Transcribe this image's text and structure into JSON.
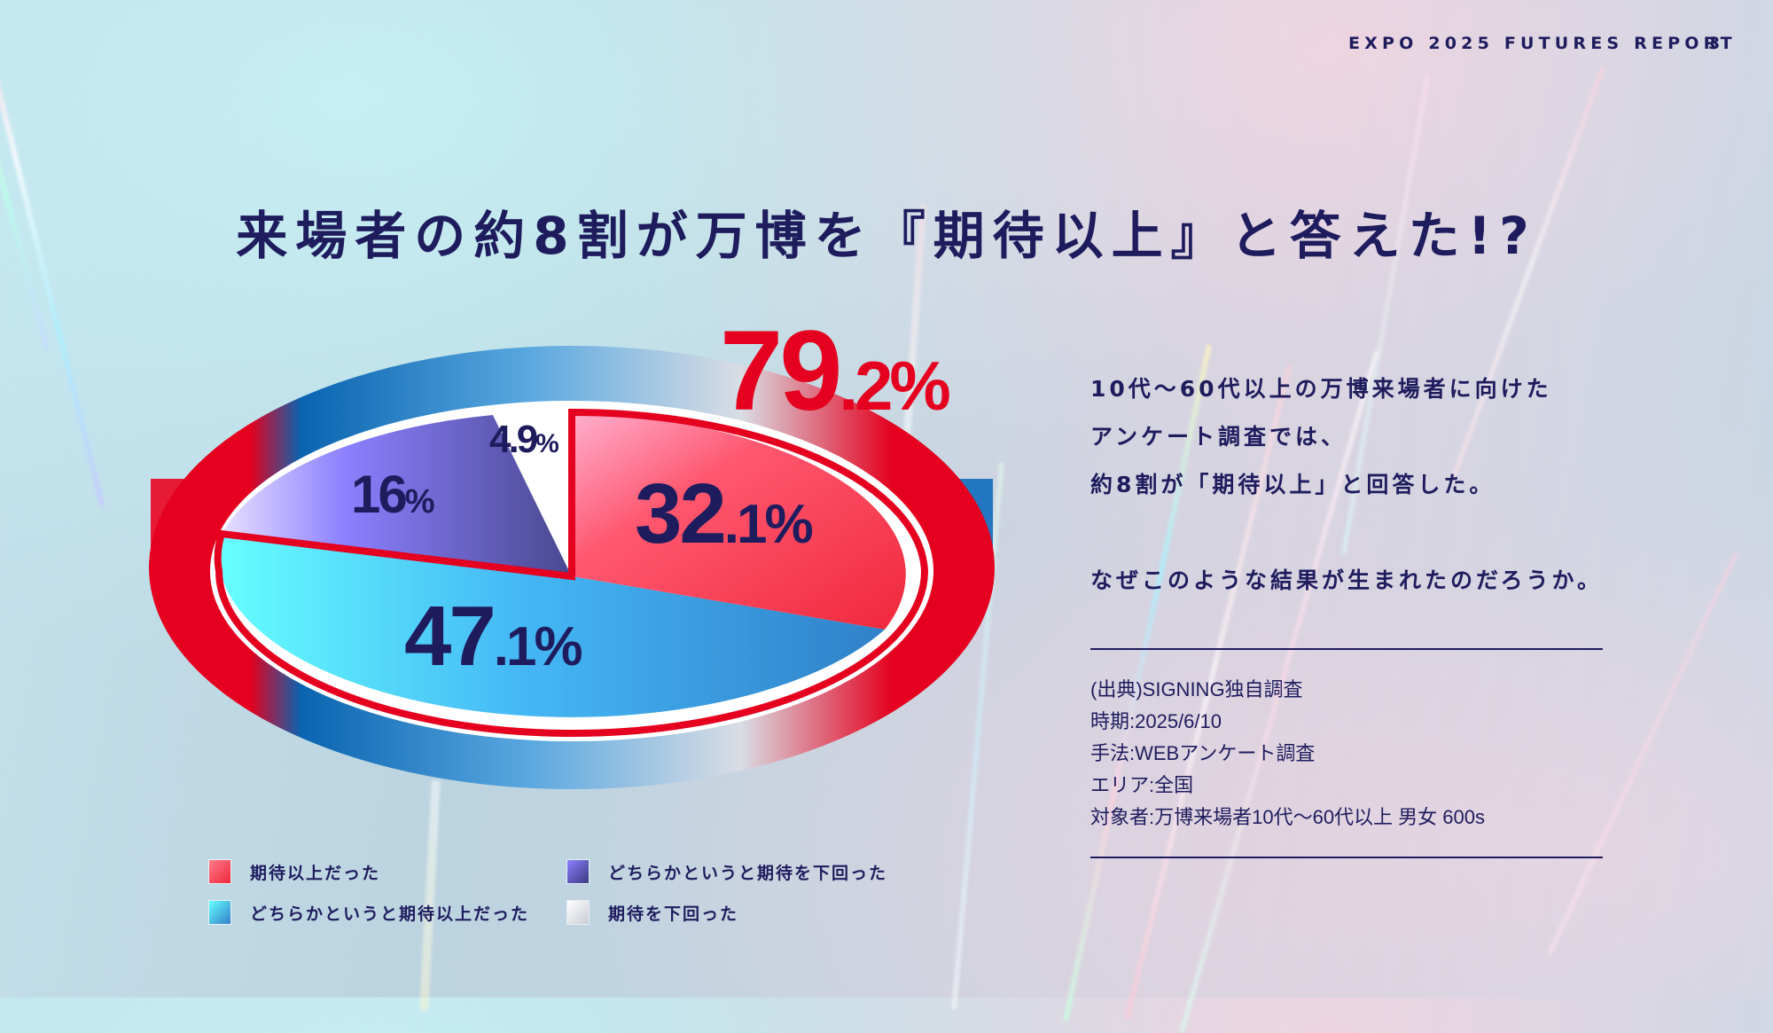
{
  "header": {
    "report_title": "EXPO 2025 FUTURES REPORT",
    "page_number": "3"
  },
  "title": "来場者の約8割が万博を『期待以上』と答えた!?",
  "highlight_stat": {
    "int": "79",
    "dec": ".2%",
    "color": "#e4001e"
  },
  "body_text": {
    "lines": [
      "10代〜60代以上の万博来場者に向けた",
      "アンケート調査では、",
      "約8割が「期待以上」と回答した。"
    ],
    "question": "なぜこのような結果が生まれたのだろうか。"
  },
  "source": {
    "lines": [
      "(出典)SIGNING独自調査",
      "時期:2025/6/10",
      "手法:WEBアンケート調査",
      "エリア:全国",
      "対象者:万博来場者10代〜60代以上 男女 600s"
    ]
  },
  "chart_data": {
    "type": "pie",
    "title": "来場者の約8割が万博を『期待以上』と答えた!?",
    "categories": [
      "期待以上だった",
      "どちらかというと期待以上だった",
      "どちらかというと期待を下回った",
      "期待を下回った"
    ],
    "values": [
      32.1,
      47.1,
      16,
      4.9
    ],
    "labels": [
      {
        "int": "32",
        "dec": ".1%"
      },
      {
        "int": "47",
        "dec": ".1%"
      },
      {
        "int": "16",
        "dec": "%"
      },
      {
        "int": "4.9",
        "dec": "%"
      }
    ],
    "colors": [
      "#ff3c55",
      "#45b8f5",
      "#6a63c9",
      "#ffffff"
    ],
    "highlight": {
      "label": "79.2%",
      "sum_of": [
        "期待以上だった",
        "どちらかというと期待以上だった"
      ]
    },
    "legend_position": "bottom",
    "style": "3d-pie"
  },
  "legend": {
    "items": [
      {
        "label": "期待以上だった"
      },
      {
        "label": "どちらかというと期待以上だった"
      },
      {
        "label": "どちらかというと期待を下回った"
      },
      {
        "label": "期待を下回った"
      }
    ]
  },
  "colors": {
    "navy": "#1f1c5e",
    "red": "#e4001e",
    "blue_rim": "#0a64b0"
  }
}
